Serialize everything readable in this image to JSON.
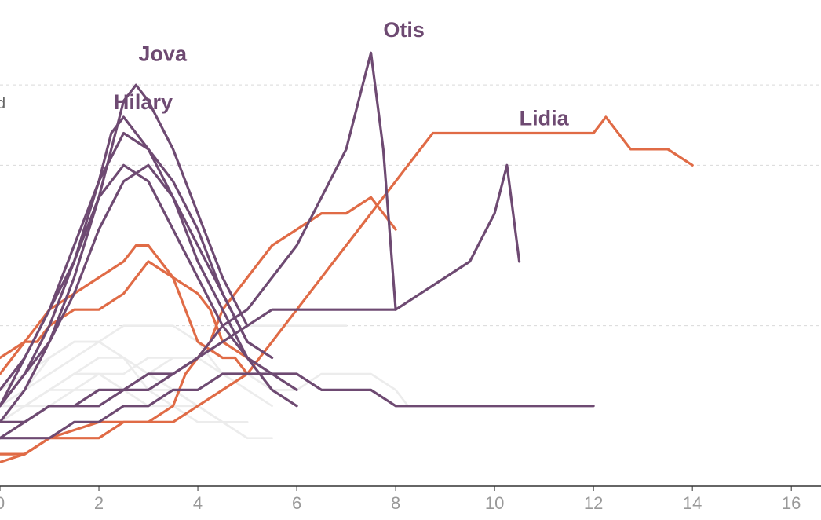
{
  "chart_data": {
    "type": "line",
    "title": "",
    "xlabel": "",
    "ylabel": "",
    "xlim": [
      0,
      16.6
    ],
    "ylim": [
      0,
      6
    ],
    "grid": true,
    "x_ticks": [
      0,
      2,
      4,
      6,
      8,
      10,
      12,
      14,
      16
    ],
    "y_gridlines": [
      2,
      4,
      5
    ],
    "partial_labels": [
      ".",
      "d"
    ],
    "colors": {
      "highlight_purple": "#6e4a72",
      "highlight_orange": "#e06b46",
      "background_gray": "#ececec",
      "axis": "#333333",
      "grid": "#d9d9d9"
    },
    "series": [
      {
        "group": "background",
        "x": [
          0,
          0.5,
          1,
          1.5,
          2,
          2.5,
          3,
          3.5,
          4,
          4.5,
          5
        ],
        "y": [
          1,
          1.2,
          1.6,
          1.8,
          1.8,
          1.6,
          1.4,
          1.2,
          1,
          0.8,
          0.6
        ]
      },
      {
        "group": "background",
        "x": [
          0,
          0.5,
          1,
          1.5,
          2,
          2.5,
          3,
          3.5,
          4,
          4.5,
          5
        ],
        "y": [
          0.8,
          1,
          1.2,
          1.4,
          1.6,
          1.6,
          1.4,
          1.2,
          1,
          0.8,
          0.8
        ]
      },
      {
        "group": "background",
        "x": [
          0,
          0.5,
          1,
          1.5,
          2,
          2.5,
          3,
          3.5,
          4,
          4.5,
          5,
          5.5
        ],
        "y": [
          1.2,
          1.4,
          1.6,
          1.8,
          1.8,
          1.6,
          1.2,
          1.2,
          1,
          0.8,
          0.6,
          0.6
        ]
      },
      {
        "group": "background",
        "x": [
          0.5,
          1,
          1.5,
          2,
          2.5,
          3,
          3.5,
          4,
          4.5,
          5,
          5.5
        ],
        "y": [
          1.2,
          1.4,
          1.6,
          1.8,
          2,
          2,
          2,
          1.8,
          1.4,
          1.2,
          1
        ]
      },
      {
        "group": "background",
        "x": [
          0,
          0.5,
          1,
          1.5,
          2,
          2.5,
          3,
          3.5,
          4,
          4.5,
          5,
          5.5,
          6,
          6.5,
          7,
          7.5,
          8,
          8.25
        ],
        "y": [
          1,
          1,
          1.2,
          1.2,
          1.4,
          1.4,
          1.6,
          1.6,
          1.6,
          1.4,
          1.4,
          1.2,
          1.2,
          1.4,
          1.4,
          1.4,
          1.2,
          1
        ]
      },
      {
        "group": "background",
        "x": [
          0,
          0.5,
          1,
          1.5,
          2,
          2.5,
          3,
          3.5,
          4,
          4.5,
          5
        ],
        "y": [
          0.8,
          1,
          1.2,
          1.4,
          1.4,
          1.2,
          1.2,
          1,
          0.8,
          0.8,
          0.8
        ]
      },
      {
        "group": "background",
        "x": [
          1,
          1.5,
          2,
          2.5,
          3,
          3.5,
          4,
          4.5,
          5
        ],
        "y": [
          1.2,
          1.4,
          1.4,
          1.2,
          1,
          1,
          1,
          0.8,
          0.6
        ]
      },
      {
        "group": "background",
        "x": [
          0,
          0.5,
          1,
          1.5,
          2,
          2.5,
          3,
          3.5,
          4,
          4.5,
          5,
          5.5,
          6,
          6.5,
          7
        ],
        "y": [
          1,
          1,
          1,
          1.2,
          1.2,
          1.2,
          1.4,
          1.6,
          1.6,
          1.8,
          2,
          2,
          2,
          2,
          2
        ]
      },
      {
        "group": "orange",
        "x": [
          0,
          0.25,
          0.5,
          0.75,
          1,
          1.5,
          2,
          2.5,
          3,
          3.5,
          4,
          4.25,
          4.5,
          5
        ],
        "y": [
          1.4,
          1.6,
          1.8,
          1.8,
          2,
          2.2,
          2.2,
          2.4,
          2.8,
          2.6,
          2.4,
          2.2,
          1.8,
          1.6
        ]
      },
      {
        "group": "orange",
        "x": [
          0,
          0.5,
          0.75,
          1,
          1.5,
          2,
          2.5,
          2.75,
          3,
          3.5,
          4,
          4.5,
          4.75,
          5
        ],
        "y": [
          1.6,
          1.8,
          2,
          2.2,
          2.4,
          2.6,
          2.8,
          3,
          3,
          2.6,
          1.8,
          1.6,
          1.6,
          1.4
        ]
      },
      {
        "group": "orange",
        "x": [
          0,
          0.5,
          1,
          1.5,
          2,
          2.5,
          3,
          3.5,
          3.75,
          4,
          4.25,
          4.5,
          5,
          5.5,
          6,
          6.5,
          7,
          7.5,
          8
        ],
        "y": [
          0.4,
          0.4,
          0.6,
          0.6,
          0.6,
          0.8,
          0.8,
          1,
          1.4,
          1.6,
          1.8,
          2.2,
          2.6,
          3,
          3.2,
          3.4,
          3.4,
          3.6,
          3.2
        ]
      },
      {
        "group": "orange",
        "x": [
          0,
          0.5,
          1,
          1.5,
          2,
          2.5,
          3,
          3.5,
          4,
          4.5,
          5,
          5.25,
          5.5,
          5.75,
          6,
          6.25,
          6.5,
          6.75,
          7,
          7.25,
          7.5,
          7.75,
          8,
          8.25,
          8.5,
          8.75,
          9,
          9.5,
          10,
          10.5,
          11,
          11.5,
          12,
          12.25,
          12.5,
          12.75,
          13,
          13.5,
          14
        ],
        "y": [
          0.3,
          0.4,
          0.6,
          0.7,
          0.8,
          0.8,
          0.8,
          0.8,
          1,
          1.2,
          1.4,
          1.6,
          1.8,
          2,
          2.2,
          2.4,
          2.6,
          2.8,
          3,
          3.2,
          3.4,
          3.6,
          3.8,
          4,
          4.2,
          4.4,
          4.4,
          4.4,
          4.4,
          4.4,
          4.4,
          4.4,
          4.4,
          4.6,
          4.4,
          4.2,
          4.2,
          4.2,
          4.0
        ]
      },
      {
        "group": "purple",
        "name": "Jova",
        "x": [
          0,
          0.5,
          1,
          1.5,
          2,
          2.25,
          2.5,
          2.75,
          3,
          3.5,
          4,
          4.5,
          5
        ],
        "y": [
          1,
          1.6,
          2.2,
          2.8,
          3.6,
          4.2,
          4.8,
          5,
          4.8,
          4.2,
          3.4,
          2.6,
          2
        ]
      },
      {
        "group": "purple",
        "name": "Hilary",
        "x": [
          0,
          0.5,
          1,
          1.5,
          2,
          2.25,
          2.5,
          2.75,
          3,
          3.5,
          4,
          4.5,
          5
        ],
        "y": [
          1,
          1.4,
          2,
          2.8,
          3.8,
          4.4,
          4.6,
          4.4,
          4.2,
          3.8,
          3.2,
          2.4,
          1.8
        ]
      },
      {
        "group": "purple",
        "x": [
          0,
          0.5,
          1,
          1.5,
          2,
          2.5,
          3,
          3.5,
          4,
          4.5,
          5,
          5.5,
          6
        ],
        "y": [
          1.2,
          1.6,
          2.2,
          3,
          3.8,
          4.4,
          4.2,
          3.6,
          2.8,
          2.2,
          1.6,
          1.2,
          1
        ]
      },
      {
        "group": "purple",
        "x": [
          0,
          0.5,
          1,
          1.5,
          2,
          2.5,
          3,
          3.5,
          4,
          4.5,
          5,
          5.5,
          6
        ],
        "y": [
          0.8,
          1.2,
          1.8,
          2.6,
          3.6,
          4,
          3.8,
          3.2,
          2.6,
          2,
          1.6,
          1.4,
          1.2
        ]
      },
      {
        "group": "purple",
        "x": [
          0,
          0.5,
          1,
          1.5,
          2,
          2.5,
          3,
          3.5,
          4,
          4.5,
          5,
          5.5
        ],
        "y": [
          1,
          1.4,
          1.8,
          2.4,
          3.2,
          3.8,
          4,
          3.6,
          3,
          2.4,
          1.8,
          1.6
        ]
      },
      {
        "group": "purple",
        "name": "Otis",
        "x": [
          0,
          0.5,
          1,
          1.5,
          2,
          2.5,
          3,
          3.5,
          4,
          4.5,
          5,
          5.5,
          6,
          6.5,
          7,
          7.25,
          7.5,
          7.75,
          8
        ],
        "y": [
          0.6,
          0.8,
          1,
          1,
          1.2,
          1.2,
          1.4,
          1.4,
          1.6,
          2,
          2.2,
          2.6,
          3,
          3.6,
          4.2,
          4.8,
          5.4,
          4.2,
          2.2
        ]
      },
      {
        "group": "purple",
        "name": "Lidia",
        "x": [
          0,
          0.5,
          1,
          1.5,
          2,
          2.5,
          3,
          3.5,
          4,
          4.5,
          5,
          5.5,
          6,
          6.5,
          7,
          7.5,
          8,
          8.5,
          9,
          9.5,
          10,
          10.25,
          10.5
        ],
        "y": [
          0.8,
          0.8,
          1,
          1,
          1,
          1.2,
          1.2,
          1.4,
          1.6,
          1.8,
          2,
          2.2,
          2.2,
          2.2,
          2.2,
          2.2,
          2.2,
          2.4,
          2.6,
          2.8,
          3.4,
          4,
          2.8
        ]
      },
      {
        "group": "purple",
        "x": [
          0,
          0.5,
          1,
          1.5,
          2,
          2.5,
          3,
          3.5,
          4,
          4.5,
          5,
          5.5,
          6,
          6.5,
          7,
          7.5,
          8,
          9,
          10,
          11,
          12
        ],
        "y": [
          0.6,
          0.6,
          0.6,
          0.8,
          0.8,
          1,
          1,
          1.2,
          1.2,
          1.4,
          1.4,
          1.4,
          1.4,
          1.2,
          1.2,
          1.2,
          1,
          1,
          1,
          1,
          1
        ]
      }
    ],
    "annotations": [
      {
        "text": "Jova",
        "x": 2.8,
        "y": 5.3
      },
      {
        "text": "Hilary",
        "x": 2.3,
        "y": 4.7
      },
      {
        "text": "Otis",
        "x": 7.75,
        "y": 5.6
      },
      {
        "text": "Lidia",
        "x": 10.5,
        "y": 4.5
      }
    ]
  }
}
